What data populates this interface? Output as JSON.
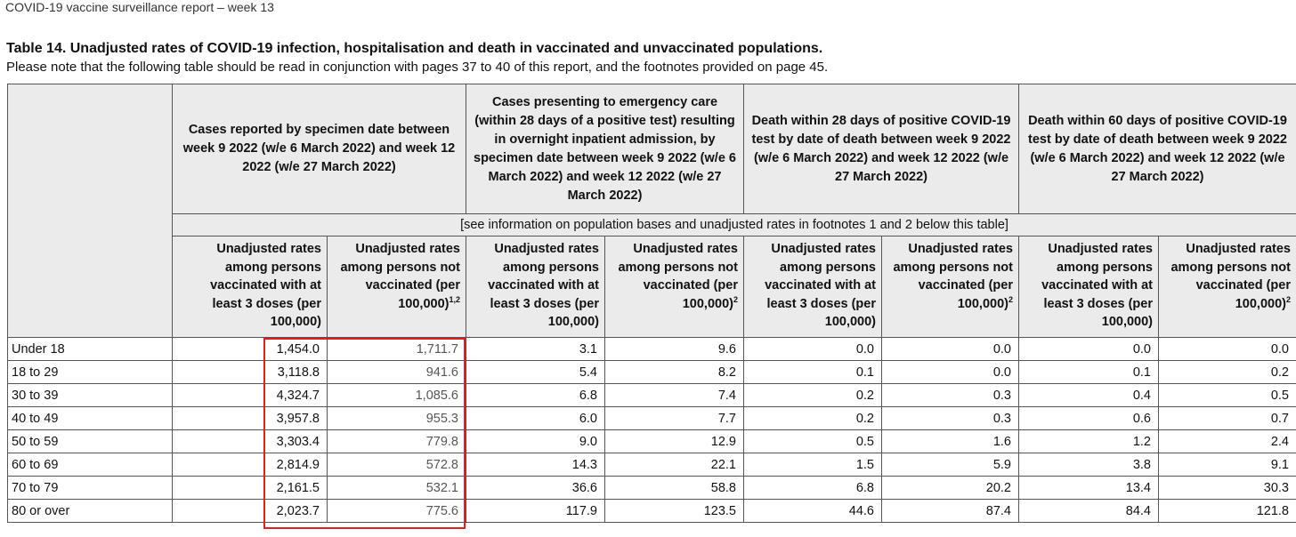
{
  "header": "COVID-19 vaccine surveillance report – week 13",
  "title": "Table 14. Unadjusted rates of COVID-19 infection, hospitalisation and death in vaccinated and unvaccinated populations.",
  "subtitle": "Please note that the following table should be read in conjunction with pages 37 to 40 of this report, and the footnotes provided on page 45.",
  "groups": [
    "Cases reported by specimen date between week 9 2022 (w/e 6 March 2022) and week 12 2022 (w/e 27 March 2022)",
    "Cases presenting to emergency care (within 28 days of a positive test) resulting in overnight inpatient admission, by specimen date between week 9 2022 (w/e 6 March 2022) and week 12 2022 (w/e 27 March 2022)",
    "Death within 28 days of positive COVID-19 test by date of death between week 9 2022 (w/e 6 March 2022) and week 12 2022 (w/e 27 March 2022)",
    "Death within 60 days of positive COVID-19 test by date of death between week 9 2022 (w/e 6 March 2022) and week 12 2022 (w/e 27 March 2022)"
  ],
  "note": "[see information on population bases and unadjusted rates in footnotes 1 and 2 below this table]",
  "subheaders": {
    "vaccinated": "Unadjusted rates among persons vaccinated with at least 3 doses (per 100,000)",
    "not_vaccinated": "Unadjusted rates among persons not vaccinated (per 100,000)",
    "sup_first": "1,2",
    "sup_other": "2"
  },
  "rows": [
    {
      "age": "Under 18",
      "values": [
        "1,454.0",
        "1,711.7",
        "3.1",
        "9.6",
        "0.0",
        "0.0",
        "0.0",
        "0.0"
      ]
    },
    {
      "age": "18 to 29",
      "values": [
        "3,118.8",
        "941.6",
        "5.4",
        "8.2",
        "0.1",
        "0.0",
        "0.1",
        "0.2"
      ]
    },
    {
      "age": "30 to 39",
      "values": [
        "4,324.7",
        "1,085.6",
        "6.8",
        "7.4",
        "0.2",
        "0.3",
        "0.4",
        "0.5"
      ]
    },
    {
      "age": "40 to 49",
      "values": [
        "3,957.8",
        "955.3",
        "6.0",
        "7.7",
        "0.2",
        "0.3",
        "0.6",
        "0.7"
      ]
    },
    {
      "age": "50 to 59",
      "values": [
        "3,303.4",
        "779.8",
        "9.0",
        "12.9",
        "0.5",
        "1.6",
        "1.2",
        "2.4"
      ]
    },
    {
      "age": "60 to 69",
      "values": [
        "2,814.9",
        "572.8",
        "14.3",
        "22.1",
        "1.5",
        "5.9",
        "3.8",
        "9.1"
      ]
    },
    {
      "age": "70 to 79",
      "values": [
        "2,161.5",
        "532.1",
        "36.6",
        "58.8",
        "6.8",
        "20.2",
        "13.4",
        "30.3"
      ]
    },
    {
      "age": "80 or over",
      "values": [
        "2,023.7",
        "775.6",
        "117.9",
        "123.5",
        "44.6",
        "87.4",
        "84.4",
        "121.8"
      ]
    }
  ],
  "colors": {
    "highlight_border": "#e02020",
    "header_bg": "#ebebeb"
  }
}
